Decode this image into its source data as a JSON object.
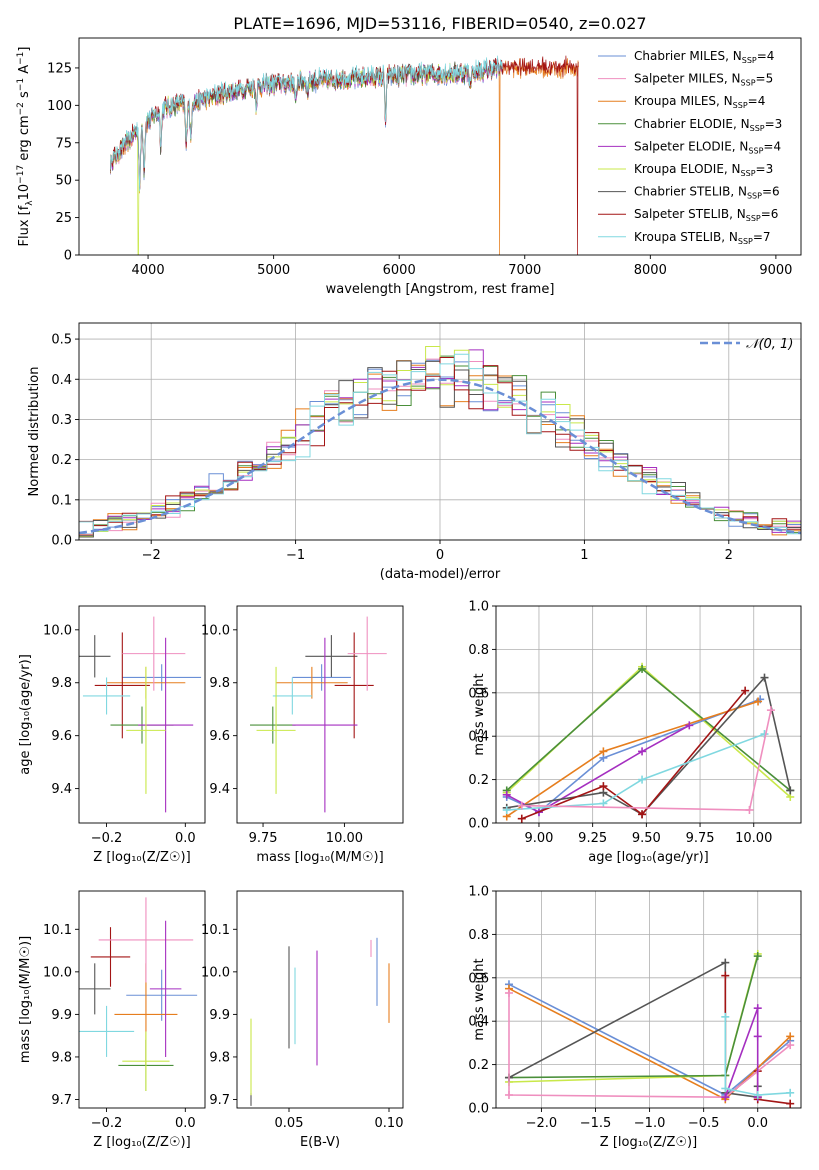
{
  "title": "PLATE=1696, MJD=53116, FIBERID=0540, z=0.027",
  "colors": {
    "c0": "#6a8fd6",
    "c1": "#ef8fbf",
    "c2": "#e67e1e",
    "c3": "#4a8f3a",
    "c4": "#a52fc0",
    "c5": "#c9e84a",
    "c6": "#555555",
    "c7": "#a31515",
    "c8": "#80d8e0",
    "grid": "#b0b0b0"
  },
  "chart_data": [
    {
      "id": "spectrum",
      "type": "line",
      "xlabel": "wavelength [Angstrom, rest frame]",
      "ylabel": "Flux [f_λ 10^-17 erg cm^-2 s^-1 A^-1]",
      "xlim": [
        3450,
        9200
      ],
      "ylim": [
        0,
        145
      ],
      "xticks": [
        4000,
        5000,
        6000,
        7000,
        8000,
        9000
      ],
      "yticks": [
        0,
        25,
        50,
        75,
        100,
        125
      ],
      "grid": false,
      "legend_position": "top-right",
      "legend": [
        {
          "label": "Chabrier MILES, N",
          "sub": "SSP",
          "tail": "=4",
          "color": "c0"
        },
        {
          "label": "Salpeter MILES, N",
          "sub": "SSP",
          "tail": "=5",
          "color": "c1"
        },
        {
          "label": "Kroupa MILES, N",
          "sub": "SSP",
          "tail": "=4",
          "color": "c2"
        },
        {
          "label": "Chabrier ELODIE, N",
          "sub": "SSP",
          "tail": "=3",
          "color": "c3"
        },
        {
          "label": "Salpeter ELODIE, N",
          "sub": "SSP",
          "tail": "=4",
          "color": "c4"
        },
        {
          "label": "Kroupa ELODIE, N",
          "sub": "SSP",
          "tail": "=3",
          "color": "c5"
        },
        {
          "label": "Chabrier STELIB, N",
          "sub": "SSP",
          "tail": "=6",
          "color": "c6"
        },
        {
          "label": "Salpeter STELIB, N",
          "sub": "SSP",
          "tail": "=6",
          "color": "c7"
        },
        {
          "label": "Kroupa STELIB, N",
          "sub": "SSP",
          "tail": "=7",
          "color": "c8"
        }
      ],
      "continuum": [
        [
          3700,
          62
        ],
        [
          3800,
          72
        ],
        [
          3900,
          82
        ],
        [
          4000,
          90
        ],
        [
          4100,
          97
        ],
        [
          4200,
          100
        ],
        [
          4400,
          103
        ],
        [
          4600,
          108
        ],
        [
          4800,
          112
        ],
        [
          5000,
          114
        ],
        [
          5200,
          116
        ],
        [
          5400,
          117
        ],
        [
          5600,
          118
        ],
        [
          5800,
          119
        ],
        [
          6000,
          120
        ],
        [
          6200,
          121
        ],
        [
          6400,
          121
        ],
        [
          6600,
          122
        ],
        [
          6800,
          125
        ]
      ],
      "absorption_lines": [
        [
          3934,
          -40
        ],
        [
          3969,
          -30
        ],
        [
          4102,
          -25
        ],
        [
          4304,
          -30
        ],
        [
          4340,
          -25
        ],
        [
          4861,
          -12
        ],
        [
          5175,
          -15
        ],
        [
          5270,
          -8
        ],
        [
          5892,
          -30
        ],
        [
          6563,
          -8
        ]
      ],
      "spectrum_ranges": [
        {
          "color": "c0",
          "x0": 3700,
          "x1": 6820
        },
        {
          "color": "c1",
          "x0": 3700,
          "x1": 6820
        },
        {
          "color": "c2",
          "x0": 3700,
          "x1": 7430
        },
        {
          "color": "c3",
          "x0": 3700,
          "x1": 6820
        },
        {
          "color": "c4",
          "x0": 3700,
          "x1": 6820
        },
        {
          "color": "c5",
          "x0": 3700,
          "x1": 6820
        },
        {
          "color": "c6",
          "x0": 3700,
          "x1": 6820
        },
        {
          "color": "c7",
          "x0": 3700,
          "x1": 7430
        },
        {
          "color": "c8",
          "x0": 3700,
          "x1": 6820
        }
      ],
      "dropouts": [
        {
          "color": "c5",
          "x": 3922
        },
        {
          "color": "c2",
          "x": 6800
        },
        {
          "color": "c7",
          "x": 7420
        }
      ]
    },
    {
      "id": "residuals",
      "type": "histogram",
      "xlabel": "(data-model)/error",
      "ylabel": "Normed distribution",
      "xlim": [
        -2.5,
        2.5
      ],
      "ylim": [
        0,
        0.54
      ],
      "xticks": [
        -2,
        -1,
        0,
        1,
        2
      ],
      "xtick_labels": [
        "−2",
        "−1",
        "0",
        "1",
        "2"
      ],
      "yticks": [
        0,
        0.1,
        0.2,
        0.3,
        0.4,
        0.5
      ],
      "grid": true,
      "bin_width": 0.1,
      "legend_label": "𝒩(0, 1)",
      "legend_position": "top-right",
      "reference_curve": {
        "type": "normal",
        "mean": 0,
        "sigma": 1,
        "color": "c0"
      },
      "series_colors": [
        "c0",
        "c1",
        "c2",
        "c3",
        "c4",
        "c5",
        "c6",
        "c7",
        "c8"
      ]
    },
    {
      "id": "age-vs-Z",
      "type": "errorbar",
      "xlabel": "Z [log₁₀(Z/Z☉)]",
      "ylabel": "age  [log₁₀(age/yr)]",
      "xlim": [
        -0.27,
        0.05
      ],
      "ylim": [
        9.27,
        10.09
      ],
      "xticks": [
        -0.2,
        0.0
      ],
      "xtick_labels": [
        "−0.2",
        "0.0"
      ],
      "yticks": [
        9.4,
        9.6,
        9.8,
        10.0
      ],
      "points": [
        {
          "color": "c6",
          "x": -0.23,
          "xerr": 0.04,
          "y": 9.9,
          "yerr": 0.08
        },
        {
          "color": "c0",
          "x": -0.06,
          "xerr": 0.1,
          "y": 9.82,
          "yerr": 0.05
        },
        {
          "color": "c2",
          "x": -0.1,
          "xerr": 0.1,
          "y": 9.8,
          "yerr": 0.06
        },
        {
          "color": "c7",
          "x": -0.16,
          "xerr": 0.07,
          "y": 9.79,
          "yerr": 0.2
        },
        {
          "color": "c1",
          "x": -0.08,
          "xerr": 0.08,
          "y": 9.91,
          "yerr": 0.14
        },
        {
          "color": "c8",
          "x": -0.2,
          "xerr": 0.06,
          "y": 9.75,
          "yerr": 0.07
        },
        {
          "color": "c3",
          "x": -0.11,
          "xerr": 0.08,
          "y": 9.64,
          "yerr": 0.07
        },
        {
          "color": "c4",
          "x": -0.05,
          "xerr": 0.07,
          "y": 9.64,
          "yerr": 0.33
        },
        {
          "color": "c5",
          "x": -0.1,
          "xerr": 0.05,
          "y": 9.62,
          "yerr": 0.24
        }
      ]
    },
    {
      "id": "age-vs-mass",
      "type": "errorbar",
      "xlabel": "mass [log₁₀(M/M☉)]",
      "ylabel": "",
      "xlim": [
        9.67,
        10.18
      ],
      "ylim": [
        9.27,
        10.09
      ],
      "xticks": [
        9.75,
        10.0
      ],
      "xtick_labels": [
        "9.75",
        "10.00"
      ],
      "yticks": [
        9.4,
        9.6,
        9.8,
        10.0
      ],
      "points": [
        {
          "color": "c6",
          "x": 9.96,
          "xerr": 0.08,
          "y": 9.9,
          "yerr": 0.08
        },
        {
          "color": "c0",
          "x": 9.93,
          "xerr": 0.09,
          "y": 9.82,
          "yerr": 0.05
        },
        {
          "color": "c2",
          "x": 9.9,
          "xerr": 0.11,
          "y": 9.8,
          "yerr": 0.06
        },
        {
          "color": "c7",
          "x": 10.03,
          "xerr": 0.06,
          "y": 9.79,
          "yerr": 0.2
        },
        {
          "color": "c1",
          "x": 10.07,
          "xerr": 0.06,
          "y": 9.91,
          "yerr": 0.14
        },
        {
          "color": "c8",
          "x": 9.84,
          "xerr": 0.06,
          "y": 9.75,
          "yerr": 0.07
        },
        {
          "color": "c3",
          "x": 9.78,
          "xerr": 0.07,
          "y": 9.64,
          "yerr": 0.07
        },
        {
          "color": "c4",
          "x": 9.94,
          "xerr": 0.1,
          "y": 9.64,
          "yerr": 0.33
        },
        {
          "color": "c5",
          "x": 9.79,
          "xerr": 0.06,
          "y": 9.62,
          "yerr": 0.24
        }
      ]
    },
    {
      "id": "weight-vs-age",
      "type": "line",
      "xlabel": "age  [log₁₀(age/yr)]",
      "ylabel": "mass weight",
      "xlim": [
        8.8,
        10.22
      ],
      "ylim": [
        0,
        1
      ],
      "xticks": [
        9.0,
        9.25,
        9.5,
        9.75,
        10.0
      ],
      "xtick_labels": [
        "9.00",
        "9.25",
        "9.50",
        "9.75",
        "10.00"
      ],
      "yticks": [
        0,
        0.2,
        0.4,
        0.6,
        0.8,
        1.0
      ],
      "grid": true,
      "series": [
        {
          "color": "c5",
          "points": [
            [
              8.85,
              0.14
            ],
            [
              9.48,
              0.72
            ],
            [
              10.17,
              0.12
            ]
          ]
        },
        {
          "color": "c3",
          "points": [
            [
              8.85,
              0.15
            ],
            [
              9.48,
              0.71
            ],
            [
              10.17,
              0.15
            ]
          ]
        },
        {
          "color": "c0",
          "points": [
            [
              8.85,
              0.12
            ],
            [
              9.0,
              0.05
            ],
            [
              9.3,
              0.3
            ],
            [
              10.03,
              0.57
            ]
          ]
        },
        {
          "color": "c2",
          "points": [
            [
              8.85,
              0.03
            ],
            [
              9.3,
              0.33
            ],
            [
              10.02,
              0.56
            ]
          ]
        },
        {
          "color": "c4",
          "points": [
            [
              8.85,
              0.13
            ],
            [
              9.0,
              0.05
            ],
            [
              9.48,
              0.33
            ],
            [
              9.7,
              0.45
            ]
          ]
        },
        {
          "color": "c6",
          "points": [
            [
              8.85,
              0.07
            ],
            [
              9.3,
              0.14
            ],
            [
              9.48,
              0.04
            ],
            [
              10.05,
              0.67
            ],
            [
              10.17,
              0.15
            ]
          ]
        },
        {
          "color": "c7",
          "points": [
            [
              8.92,
              0.02
            ],
            [
              9.3,
              0.17
            ],
            [
              9.48,
              0.04
            ],
            [
              9.96,
              0.61
            ]
          ]
        },
        {
          "color": "c8",
          "points": [
            [
              8.85,
              0.06
            ],
            [
              9.3,
              0.09
            ],
            [
              9.48,
              0.2
            ],
            [
              10.05,
              0.41
            ]
          ]
        },
        {
          "color": "c1",
          "points": [
            [
              8.92,
              0.08
            ],
            [
              9.98,
              0.06
            ],
            [
              10.08,
              0.52
            ]
          ]
        }
      ]
    },
    {
      "id": "mass-vs-Z",
      "type": "errorbar",
      "xlabel": "Z [log₁₀(Z/Z☉)]",
      "ylabel": "mass [log₁₀(M/M☉)]",
      "xlim": [
        -0.27,
        0.05
      ],
      "ylim": [
        9.68,
        10.19
      ],
      "xticks": [
        -0.2,
        0.0
      ],
      "xtick_labels": [
        "−0.2",
        "0.0"
      ],
      "yticks": [
        9.7,
        9.8,
        9.9,
        10.0,
        10.1
      ],
      "points": [
        {
          "color": "c6",
          "x": -0.23,
          "xerr": 0.04,
          "y": 9.96,
          "yerr": 0.06
        },
        {
          "color": "c0",
          "x": -0.06,
          "xerr": 0.09,
          "y": 9.945,
          "yerr": 0.06
        },
        {
          "color": "c2",
          "x": -0.1,
          "xerr": 0.08,
          "y": 9.9,
          "yerr": 0.12
        },
        {
          "color": "c7",
          "x": -0.19,
          "xerr": 0.05,
          "y": 10.035,
          "yerr": 0.07
        },
        {
          "color": "c1",
          "x": -0.1,
          "xerr": 0.12,
          "y": 10.075,
          "yerr": 0.1
        },
        {
          "color": "c8",
          "x": -0.2,
          "xerr": 0.07,
          "y": 9.86,
          "yerr": 0.06
        },
        {
          "color": "c3",
          "x": -0.1,
          "xerr": 0.07,
          "y": 9.78,
          "yerr": 0.06
        },
        {
          "color": "c4",
          "x": -0.05,
          "xerr": 0.04,
          "y": 9.96,
          "yerr": 0.16
        },
        {
          "color": "c5",
          "x": -0.1,
          "xerr": 0.06,
          "y": 9.79,
          "yerr": 0.07
        }
      ]
    },
    {
      "id": "mass-vs-EBV",
      "type": "errorbar",
      "xlabel": "E(B-V)",
      "ylabel": "",
      "xlim": [
        0.024,
        0.107
      ],
      "ylim": [
        9.68,
        10.19
      ],
      "xticks": [
        0.05,
        0.1
      ],
      "xtick_labels": [
        "0.05",
        "0.10"
      ],
      "yticks": [
        9.7,
        9.8,
        9.9,
        10.0,
        10.1
      ],
      "points": [
        {
          "color": "c6",
          "x": 0.031,
          "y": 9.7,
          "yerr": 0.015
        },
        {
          "color": "c5",
          "x": 0.031,
          "y": 9.8,
          "yerr": 0.09
        },
        {
          "color": "c6",
          "x": 0.05,
          "y": 9.94,
          "yerr": 0.12
        },
        {
          "color": "c8",
          "x": 0.053,
          "y": 9.92,
          "yerr": 0.09
        },
        {
          "color": "c4",
          "x": 0.064,
          "y": 9.915,
          "yerr": 0.135
        },
        {
          "color": "c1",
          "x": 0.091,
          "y": 10.055,
          "yerr": 0.02
        },
        {
          "color": "c0",
          "x": 0.094,
          "y": 10.0,
          "yerr": 0.08
        },
        {
          "color": "c2",
          "x": 0.1,
          "y": 9.95,
          "yerr": 0.07
        }
      ]
    },
    {
      "id": "weight-vs-Z",
      "type": "line",
      "xlabel": "Z [log₁₀(Z/Z☉)]",
      "ylabel": "mass weight",
      "xlim": [
        -2.42,
        0.4
      ],
      "ylim": [
        0,
        1
      ],
      "xticks": [
        -2.0,
        -1.5,
        -1.0,
        -0.5,
        0.0
      ],
      "xtick_labels": [
        "−2.0",
        "−1.5",
        "−1.0",
        "−0.5",
        "0.0"
      ],
      "yticks": [
        0,
        0.2,
        0.4,
        0.6,
        0.8,
        1.0
      ],
      "grid": true,
      "series": [
        {
          "color": "c0",
          "points": [
            [
              -2.3,
              0.57
            ],
            [
              -0.3,
              0.06
            ],
            [
              0.3,
              0.31
            ]
          ]
        },
        {
          "color": "c2",
          "points": [
            [
              -2.3,
              0.55
            ],
            [
              -0.3,
              0.04
            ],
            [
              0.3,
              0.33
            ]
          ]
        },
        {
          "color": "c5",
          "points": [
            [
              -2.3,
              0.12
            ],
            [
              -0.3,
              0.15
            ],
            [
              0.0,
              0.71
            ]
          ]
        },
        {
          "color": "c3",
          "points": [
            [
              -2.3,
              0.14
            ],
            [
              -0.3,
              0.15
            ],
            [
              0.0,
              0.7
            ]
          ]
        },
        {
          "color": "c6",
          "points": [
            [
              -2.3,
              0.14
            ],
            [
              -0.3,
              0.67
            ],
            [
              -0.3,
              0.07
            ],
            [
              0.0,
              0.05
            ],
            [
              0.0,
              0.1
            ]
          ]
        },
        {
          "color": "c7",
          "points": [
            [
              -0.3,
              0.61
            ],
            [
              -0.3,
              0.05
            ],
            [
              0.0,
              0.17
            ],
            [
              0.0,
              0.04
            ],
            [
              0.3,
              0.02
            ]
          ]
        },
        {
          "color": "c1",
          "points": [
            [
              -2.3,
              0.53
            ],
            [
              -2.3,
              0.06
            ],
            [
              -0.3,
              0.05
            ],
            [
              0.3,
              0.29
            ]
          ]
        },
        {
          "color": "c4",
          "points": [
            [
              -0.3,
              0.05
            ],
            [
              0.0,
              0.46
            ],
            [
              0.0,
              0.05
            ],
            [
              0.0,
              0.33
            ]
          ]
        },
        {
          "color": "c8",
          "points": [
            [
              -0.3,
              0.42
            ],
            [
              -0.3,
              0.09
            ],
            [
              0.0,
              0.06
            ],
            [
              0.3,
              0.07
            ]
          ]
        }
      ]
    }
  ]
}
